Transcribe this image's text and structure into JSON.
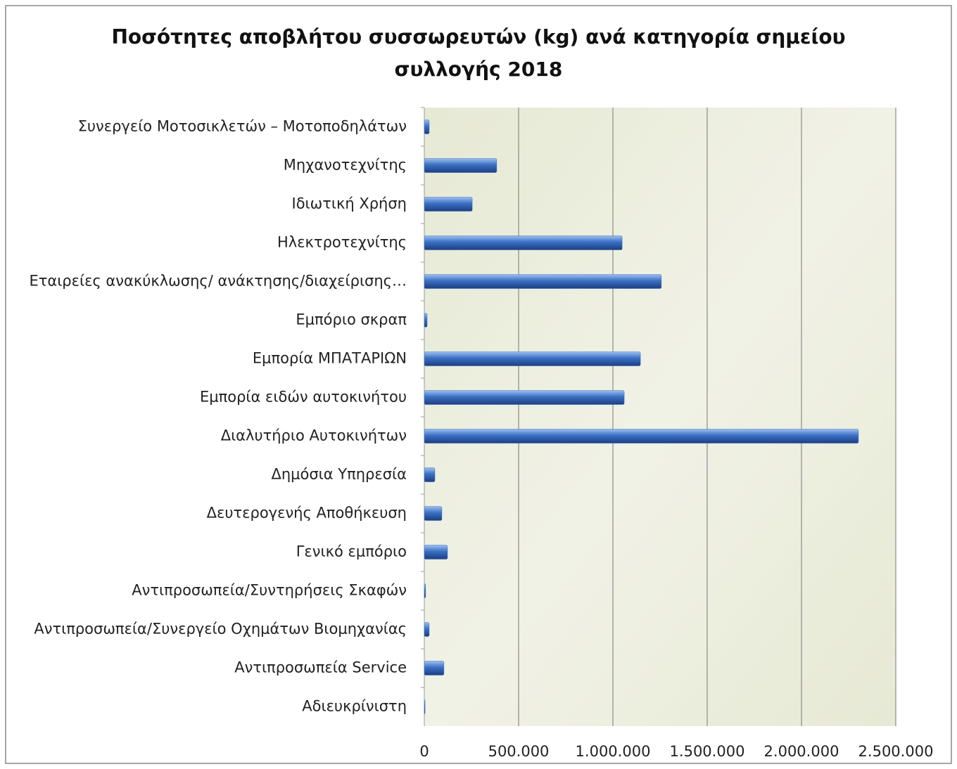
{
  "chart_data": {
    "type": "bar",
    "orientation": "horizontal",
    "title": "Ποσότητες αποβλήτου συσσωρευτών (kg) ανά κατηγορία σημείου συλλογής 2018",
    "categories": [
      "Συνεργείο Μοτοσικλετών – Μοτοποδηλάτων",
      "Μηχανοτεχνίτης",
      "Ιδιωτική Χρήση",
      "Ηλεκτροτεχνίτης",
      "Εταιρείες ανακύκλωσης/ ανάκτησης/διαχείρισης…",
      "Εμπόριο σκραπ",
      "Εμπορία ΜΠΑΤΑΡΙΩΝ",
      "Εμπορία ειδών αυτοκινήτου",
      "Διαλυτήριο Αυτοκινήτων",
      "Δημόσια Υπηρεσία",
      "Δευτερογενής Αποθήκευση",
      "Γενικό εμπόριο",
      "Αντιπροσωπεία/Συντηρήσεις Σκαφών",
      "Αντιπροσωπεία/Συνεργείο Οχημάτων Βιομηχανίας",
      "Αντιπροσωπεία Service",
      "Αδιευκρίνιστη"
    ],
    "values": [
      26000,
      384000,
      254000,
      1049000,
      1257000,
      15000,
      1146000,
      1060000,
      2302000,
      56000,
      93000,
      123000,
      7000,
      26000,
      104000,
      4000
    ],
    "color": "#3a6fc4",
    "xlim": [
      0,
      2500000
    ],
    "xticks": [
      0,
      {
        "value": 500000,
        "label": "500.000"
      },
      {
        "value": 1000000,
        "label": "1.000.000"
      },
      {
        "value": 1500000,
        "label": "1.500.000"
      },
      {
        "value": 2000000,
        "label": "2.000.000"
      },
      {
        "value": 2500000,
        "label": "2.500.000"
      }
    ],
    "grid": true
  }
}
